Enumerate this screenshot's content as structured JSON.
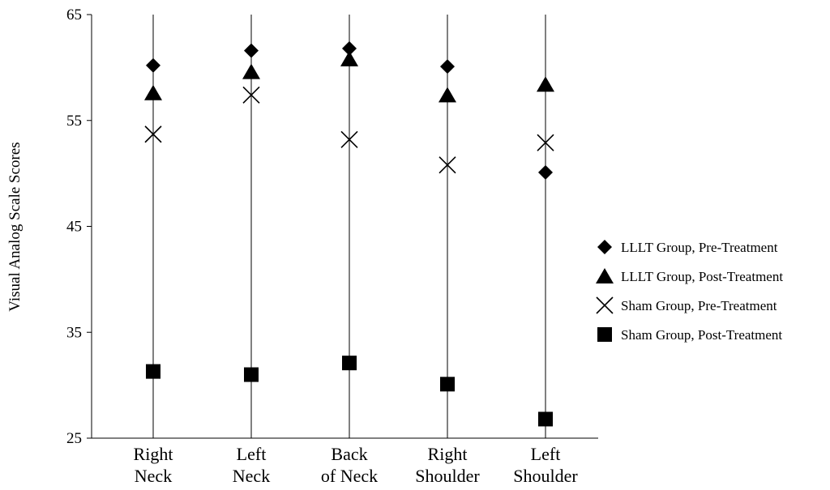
{
  "chart_data": {
    "type": "scatter",
    "ylabel": "Visual Analog Scale Scores",
    "ylim": [
      25,
      65
    ],
    "yticks": [
      25,
      35,
      45,
      55,
      65
    ],
    "categories": [
      [
        "Right",
        "Neck"
      ],
      [
        "Left",
        "Neck"
      ],
      [
        "Back",
        "of Neck"
      ],
      [
        "Right",
        "Shoulder"
      ],
      [
        "Left",
        "Shoulder"
      ]
    ],
    "legend_position": "right",
    "series": [
      {
        "name": "LLLT Group, Pre-Treatment",
        "marker": "diamond",
        "color": "#000000",
        "values": [
          60.2,
          61.6,
          61.8,
          60.1,
          50.1
        ]
      },
      {
        "name": "LLLT Group, Post-Treatment",
        "marker": "triangle",
        "color": "#000000",
        "values": [
          57.6,
          59.6,
          60.8,
          57.4,
          58.4
        ]
      },
      {
        "name": "Sham Group, Pre-Treatment",
        "marker": "x",
        "color": "#000000",
        "values": [
          53.7,
          57.4,
          53.2,
          50.8,
          52.9
        ]
      },
      {
        "name": "Sham Group, Post-Treatment",
        "marker": "square",
        "color": "#000000",
        "values": [
          31.3,
          31.0,
          32.1,
          30.1,
          26.8
        ]
      }
    ]
  }
}
